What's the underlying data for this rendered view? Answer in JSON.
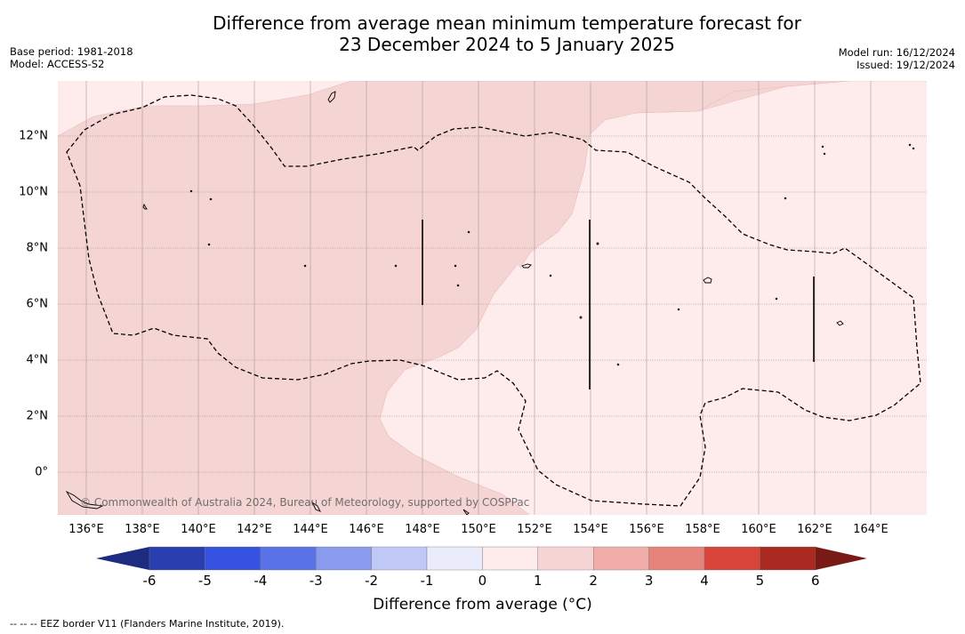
{
  "title_line1": "Difference from average mean minimum temperature forecast for",
  "title_line2": "23 December 2024 to 5 January 2025",
  "base_period": "Base period: 1981-2018",
  "model": "Model: ACCESS-S2",
  "model_run": "Model run: 16/12/2024",
  "issued": "Issued: 19/12/2024",
  "x_ticks": [
    "136°E",
    "138°E",
    "140°E",
    "142°E",
    "144°E",
    "146°E",
    "148°E",
    "150°E",
    "152°E",
    "154°E",
    "156°E",
    "158°E",
    "160°E",
    "162°E",
    "164°E"
  ],
  "y_ticks": [
    "12°N",
    "10°N",
    "8°N",
    "6°N",
    "4°N",
    "2°N",
    "0°"
  ],
  "copyright": "© Commonwealth of Australia 2024, Bureau of Meteorology, supported by COSPPac",
  "colorbar": {
    "ticks": [
      "-6",
      "-5",
      "-4",
      "-3",
      "-2",
      "-1",
      "0",
      "1",
      "2",
      "3",
      "4",
      "5",
      "6"
    ],
    "colors": [
      "#1d2c80",
      "#2a3eb0",
      "#3552e0",
      "#5a72e8",
      "#8a9aee",
      "#c0c8f6",
      "#eaecfc",
      "#fdeceb",
      "#f5d5d4",
      "#f0ada9",
      "#e6847c",
      "#d8443a",
      "#aa2a22",
      "#7a1a16"
    ],
    "label": "Difference from average (°C)"
  },
  "footnote": "--  --  -- EEZ border V11 (Flanders Marine Institute, 2019).",
  "colors": {
    "zone_1_2": "#f5d5d4",
    "zone_0_1": "#fdeceb",
    "grid": "#9a8888",
    "eez": "#000000"
  }
}
